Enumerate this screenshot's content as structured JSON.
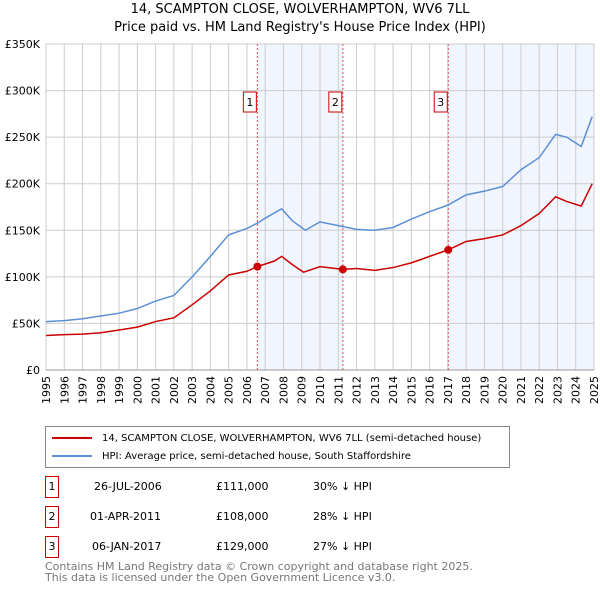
{
  "title": "14, SCAMPTON CLOSE, WOLVERHAMPTON, WV6 7LL",
  "subtitle": "Price paid vs. HM Land Registry's House Price Index (HPI)",
  "chart_data": {
    "type": "line",
    "xlim": [
      1995,
      2025
    ],
    "ylim": [
      0,
      350000
    ],
    "yticks": [
      {
        "v": 0,
        "label": "£0"
      },
      {
        "v": 50000,
        "label": "£50K"
      },
      {
        "v": 100000,
        "label": "£100K"
      },
      {
        "v": 150000,
        "label": "£150K"
      },
      {
        "v": 200000,
        "label": "£200K"
      },
      {
        "v": 250000,
        "label": "£250K"
      },
      {
        "v": 300000,
        "label": "£300K"
      },
      {
        "v": 350000,
        "label": "£350K"
      }
    ],
    "xticks": [
      "1995",
      "1996",
      "1997",
      "1998",
      "1999",
      "2000",
      "2001",
      "2002",
      "2003",
      "2004",
      "2005",
      "2006",
      "2007",
      "2008",
      "2009",
      "2010",
      "2011",
      "2012",
      "2013",
      "2014",
      "2015",
      "2016",
      "2017",
      "2018",
      "2019",
      "2020",
      "2021",
      "2022",
      "2023",
      "2024",
      "2025"
    ],
    "series": [
      {
        "name": "14, SCAMPTON CLOSE, WOLVERHAMPTON, WV6 7LL (semi-detached house)",
        "color": "#cc0000",
        "x": [
          1995,
          1996,
          1997,
          1998,
          1999,
          2000,
          2001,
          2002,
          2003,
          2004,
          2005,
          2006,
          2006.57,
          2007.5,
          2007.9,
          2008.5,
          2009.1,
          2010,
          2011.25,
          2012,
          2013,
          2014,
          2015,
          2016,
          2017.02,
          2018,
          2019,
          2020,
          2021,
          2022,
          2022.9,
          2023.5,
          2024.3,
          2024.9
        ],
        "y": [
          37000,
          38000,
          38500,
          40000,
          43000,
          46000,
          52000,
          56000,
          70000,
          85000,
          102000,
          106000,
          111000,
          117000,
          122000,
          113000,
          105000,
          111000,
          108000,
          109000,
          107000,
          110000,
          115000,
          122000,
          129000,
          138000,
          141000,
          145000,
          155000,
          168000,
          186000,
          181000,
          176000,
          200000
        ]
      },
      {
        "name": "HPI: Average price, semi-detached house, South Staffordshire",
        "color": "#5b8fd6",
        "x": [
          1995,
          1996,
          1997,
          1998,
          1999,
          2000,
          2001,
          2002,
          2003,
          2004,
          2005,
          2006,
          2006.6,
          2007,
          2007.9,
          2008.5,
          2009.2,
          2010,
          2011,
          2012,
          2013,
          2014,
          2015,
          2016,
          2017,
          2018,
          2019,
          2020,
          2021,
          2022,
          2022.9,
          2023.5,
          2024.3,
          2024.9
        ],
        "y": [
          52000,
          53000,
          55000,
          58000,
          61000,
          66000,
          74000,
          80000,
          100000,
          122000,
          145000,
          152000,
          158000,
          163000,
          173000,
          160000,
          150000,
          159000,
          155000,
          151000,
          150000,
          153000,
          162000,
          170000,
          177000,
          188000,
          192000,
          197000,
          215000,
          228000,
          253000,
          250000,
          240000,
          272000
        ]
      }
    ],
    "sales": [
      {
        "id": "1",
        "x": 2006.57,
        "y": 111000
      },
      {
        "id": "2",
        "x": 2011.25,
        "y": 108000
      },
      {
        "id": "3",
        "x": 2017.02,
        "y": 129000
      }
    ],
    "shaded": [
      [
        2006.57,
        2011.25
      ],
      [
        2017.02,
        2025
      ]
    ],
    "legend_position": "bottom"
  },
  "transactions": [
    {
      "id": "1",
      "date": "26-JUL-2006",
      "price": "£111,000",
      "hpi": "30% ↓ HPI"
    },
    {
      "id": "2",
      "date": "01-APR-2011",
      "price": "£108,000",
      "hpi": "28% ↓ HPI"
    },
    {
      "id": "3",
      "date": "06-JAN-2017",
      "price": "£129,000",
      "hpi": "27% ↓ HPI"
    }
  ],
  "footer": {
    "line1": "Contains HM Land Registry data © Crown copyright and database right 2025.",
    "line2": "This data is licensed under the Open Government Licence v3.0."
  }
}
